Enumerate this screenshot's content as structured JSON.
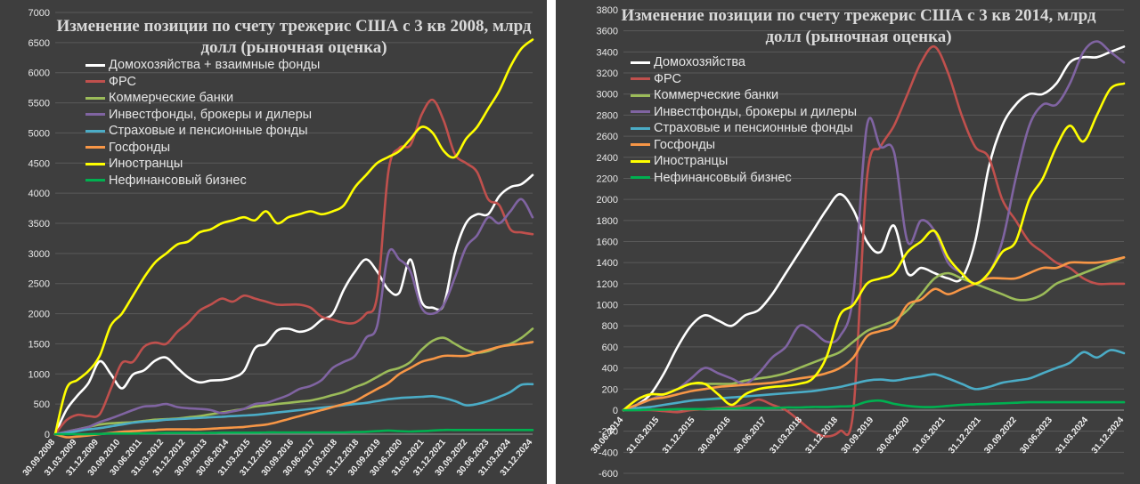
{
  "chart_data": [
    {
      "type": "line",
      "title": "Изменение позиции по счету трежерис США с 3 кв 2008, млрд долл (рыночная оценка)",
      "xlabel": "",
      "ylabel": "",
      "ylim": [
        0,
        7000
      ],
      "yticks": [
        0,
        500,
        1000,
        1500,
        2000,
        2500,
        3000,
        3500,
        4000,
        4500,
        5000,
        5500,
        6000,
        6500,
        7000
      ],
      "grid": true,
      "legend_position": "top-left",
      "x_tick_labels": [
        "30.09.2008",
        "31.03.2009",
        "31.12.2009",
        "30.09.2010",
        "30.06.2011",
        "31.03.2012",
        "31.12.2012",
        "30.09.2013",
        "30.06.2014",
        "31.03.2015",
        "31.12.2015",
        "30.09.2016",
        "30.06.2017",
        "31.03.2018",
        "31.12.2018",
        "30.09.2019",
        "30.06.2020",
        "31.03.2021",
        "31.12.2021",
        "30.09.2022",
        "30.06.2023",
        "31.03.2024",
        "31.12.2024"
      ],
      "series": [
        {
          "name": "Домохозяйства + взаимные фонды",
          "color": "#ffffff",
          "values": [
            0,
            400,
            640,
            850,
            1210,
            1000,
            760,
            990,
            1060,
            1220,
            1270,
            1100,
            940,
            860,
            890,
            900,
            940,
            1050,
            1430,
            1500,
            1720,
            1750,
            1700,
            1750,
            1900,
            2000,
            2400,
            2700,
            2900,
            2700,
            2400,
            2350,
            2900,
            2200,
            2100,
            2150,
            3000,
            3500,
            3650,
            3650,
            3950,
            4100,
            4150,
            4300
          ]
        },
        {
          "name": "ФРС",
          "color": "#c0504d",
          "values": [
            0,
            230,
            320,
            300,
            330,
            750,
            1180,
            1200,
            1450,
            1520,
            1500,
            1700,
            1850,
            2050,
            2150,
            2250,
            2200,
            2300,
            2250,
            2200,
            2150,
            2150,
            2150,
            2100,
            1950,
            1900,
            1850,
            1850,
            2000,
            2300,
            4350,
            4750,
            4800,
            5300,
            5550,
            5200,
            4650,
            4500,
            4350,
            3900,
            3800,
            3400,
            3350,
            3320
          ]
        },
        {
          "name": "Коммерческие банки",
          "color": "#9bbb59",
          "values": [
            0,
            40,
            80,
            120,
            160,
            180,
            190,
            200,
            220,
            240,
            250,
            260,
            280,
            300,
            330,
            360,
            390,
            420,
            460,
            480,
            500,
            520,
            540,
            560,
            600,
            650,
            700,
            780,
            850,
            950,
            1050,
            1100,
            1200,
            1400,
            1550,
            1600,
            1500,
            1400,
            1350,
            1380,
            1450,
            1500,
            1600,
            1750
          ]
        },
        {
          "name": "Инвестфонды, брокеры и дилеры",
          "color": "#8064a2",
          "values": [
            0,
            40,
            80,
            120,
            200,
            260,
            330,
            400,
            460,
            470,
            500,
            450,
            430,
            420,
            400,
            350,
            380,
            420,
            500,
            520,
            580,
            650,
            750,
            800,
            900,
            1100,
            1200,
            1300,
            1600,
            1800,
            3000,
            2900,
            2700,
            2100,
            2000,
            2150,
            2600,
            3100,
            3300,
            3600,
            3500,
            3700,
            3900,
            3600
          ]
        },
        {
          "name": "Страховые и пенсионные фонды",
          "color": "#4bacc6",
          "values": [
            0,
            20,
            50,
            80,
            100,
            130,
            160,
            190,
            210,
            220,
            240,
            250,
            260,
            270,
            280,
            290,
            300,
            310,
            320,
            340,
            360,
            380,
            400,
            420,
            440,
            460,
            480,
            500,
            520,
            550,
            580,
            600,
            610,
            620,
            630,
            600,
            550,
            480,
            500,
            550,
            620,
            700,
            820,
            830
          ]
        },
        {
          "name": "Госфонды",
          "color": "#f79646",
          "values": [
            0,
            -50,
            -40,
            -20,
            0,
            20,
            40,
            50,
            60,
            70,
            80,
            80,
            80,
            80,
            90,
            100,
            110,
            120,
            140,
            160,
            200,
            250,
            300,
            350,
            400,
            450,
            500,
            550,
            650,
            750,
            850,
            1000,
            1100,
            1200,
            1250,
            1300,
            1300,
            1300,
            1350,
            1400,
            1450,
            1480,
            1500,
            1530
          ]
        },
        {
          "name": "Иностранцы",
          "color": "#ffff00",
          "values": [
            0,
            750,
            900,
            1050,
            1300,
            1800,
            2000,
            2300,
            2600,
            2850,
            3000,
            3150,
            3200,
            3350,
            3400,
            3500,
            3550,
            3600,
            3550,
            3700,
            3500,
            3600,
            3650,
            3700,
            3650,
            3700,
            3800,
            4100,
            4300,
            4500,
            4600,
            4700,
            4900,
            5100,
            5000,
            4700,
            4600,
            4900,
            5100,
            5400,
            5700,
            6100,
            6400,
            6550
          ]
        },
        {
          "name": "Нефинансовый бизнес",
          "color": "#00b050",
          "values": [
            0,
            0,
            0,
            0,
            5,
            10,
            10,
            10,
            15,
            15,
            20,
            20,
            20,
            20,
            20,
            25,
            25,
            25,
            25,
            30,
            30,
            30,
            30,
            30,
            30,
            30,
            30,
            35,
            40,
            50,
            60,
            50,
            45,
            50,
            60,
            70,
            70,
            70,
            70,
            70,
            70,
            70,
            70,
            70
          ]
        }
      ]
    },
    {
      "type": "line",
      "title": "Изменение позиции по счету трежерис США с 3 кв 2014, млрд долл (рыночная оценка)",
      "xlabel": "",
      "ylabel": "",
      "ylim": [
        -600,
        3800
      ],
      "yticks": [
        -600,
        -400,
        -200,
        0,
        200,
        400,
        600,
        800,
        1000,
        1200,
        1400,
        1600,
        1800,
        2000,
        2200,
        2400,
        2600,
        2800,
        3000,
        3200,
        3400,
        3600,
        3800
      ],
      "grid": true,
      "legend_position": "top-left",
      "x_tick_labels": [
        "30.06.2014",
        "31.03.2015",
        "31.12.2015",
        "30.09.2016",
        "30.06.2017",
        "31.03.2018",
        "31.12.2018",
        "30.09.2019",
        "30.06.2020",
        "31.03.2021",
        "31.12.2021",
        "30.09.2022",
        "30.06.2023",
        "31.03.2024",
        "31.12.2024"
      ],
      "series": [
        {
          "name": "Домохозяйства",
          "color": "#ffffff",
          "values": [
            0,
            50,
            150,
            350,
            600,
            800,
            900,
            850,
            800,
            900,
            950,
            1100,
            1300,
            1500,
            1700,
            1900,
            2050,
            1900,
            1600,
            1500,
            1750,
            1300,
            1350,
            1300,
            1250,
            1250,
            1600,
            2300,
            2700,
            2900,
            3000,
            3000,
            3100,
            3300,
            3350,
            3350,
            3400,
            3450
          ]
        },
        {
          "name": "ФРС",
          "color": "#c0504d",
          "values": [
            0,
            0,
            0,
            -10,
            -20,
            0,
            10,
            20,
            30,
            50,
            100,
            50,
            0,
            -100,
            -200,
            -250,
            -200,
            0,
            2200,
            2500,
            2700,
            3000,
            3300,
            3450,
            3200,
            2800,
            2500,
            2400,
            2000,
            1800,
            1600,
            1500,
            1400,
            1350,
            1250,
            1200,
            1200,
            1200
          ]
        },
        {
          "name": "Коммерческие банки",
          "color": "#9bbb59",
          "values": [
            0,
            50,
            100,
            150,
            200,
            250,
            250,
            250,
            250,
            280,
            300,
            320,
            350,
            400,
            450,
            500,
            550,
            650,
            750,
            800,
            850,
            950,
            1100,
            1250,
            1300,
            1250,
            1200,
            1150,
            1100,
            1050,
            1050,
            1100,
            1200,
            1250,
            1300,
            1350,
            1400,
            1450
          ]
        },
        {
          "name": "Инвестфонды, брокеры и дилеры",
          "color": "#8064a2",
          "values": [
            0,
            50,
            100,
            150,
            200,
            300,
            400,
            350,
            300,
            250,
            350,
            500,
            600,
            800,
            750,
            650,
            700,
            1100,
            2700,
            2500,
            2450,
            1600,
            1800,
            1700,
            1400,
            1300,
            1200,
            1300,
            1600,
            2200,
            2700,
            2900,
            2900,
            3100,
            3400,
            3500,
            3400,
            3300
          ]
        },
        {
          "name": "Страховые и пенсионные фонды",
          "color": "#4bacc6",
          "values": [
            0,
            20,
            30,
            50,
            70,
            90,
            100,
            110,
            120,
            130,
            140,
            150,
            160,
            170,
            180,
            200,
            220,
            250,
            280,
            290,
            280,
            300,
            320,
            340,
            300,
            250,
            200,
            220,
            260,
            280,
            300,
            350,
            400,
            450,
            550,
            500,
            570,
            540
          ]
        },
        {
          "name": "Госфонды",
          "color": "#f79646",
          "values": [
            0,
            50,
            100,
            120,
            150,
            180,
            200,
            220,
            230,
            240,
            250,
            260,
            280,
            300,
            320,
            350,
            400,
            500,
            700,
            750,
            800,
            1000,
            1050,
            1150,
            1100,
            1150,
            1200,
            1250,
            1250,
            1250,
            1300,
            1350,
            1350,
            1400,
            1400,
            1400,
            1420,
            1450
          ]
        },
        {
          "name": "Иностранцы",
          "color": "#ffff00",
          "values": [
            0,
            100,
            150,
            150,
            200,
            250,
            250,
            150,
            50,
            150,
            200,
            220,
            230,
            250,
            300,
            500,
            900,
            1000,
            1200,
            1250,
            1300,
            1500,
            1600,
            1700,
            1450,
            1300,
            1200,
            1300,
            1500,
            1600,
            2000,
            2200,
            2500,
            2700,
            2550,
            2800,
            3050,
            3100
          ]
        },
        {
          "name": "Нефинансовый бизнес",
          "color": "#00b050",
          "values": [
            0,
            0,
            5,
            5,
            10,
            10,
            10,
            15,
            15,
            20,
            20,
            20,
            25,
            25,
            30,
            30,
            35,
            40,
            80,
            90,
            60,
            40,
            30,
            30,
            40,
            50,
            55,
            60,
            65,
            70,
            75,
            75,
            75,
            75,
            75,
            75,
            75,
            75
          ]
        }
      ]
    }
  ]
}
